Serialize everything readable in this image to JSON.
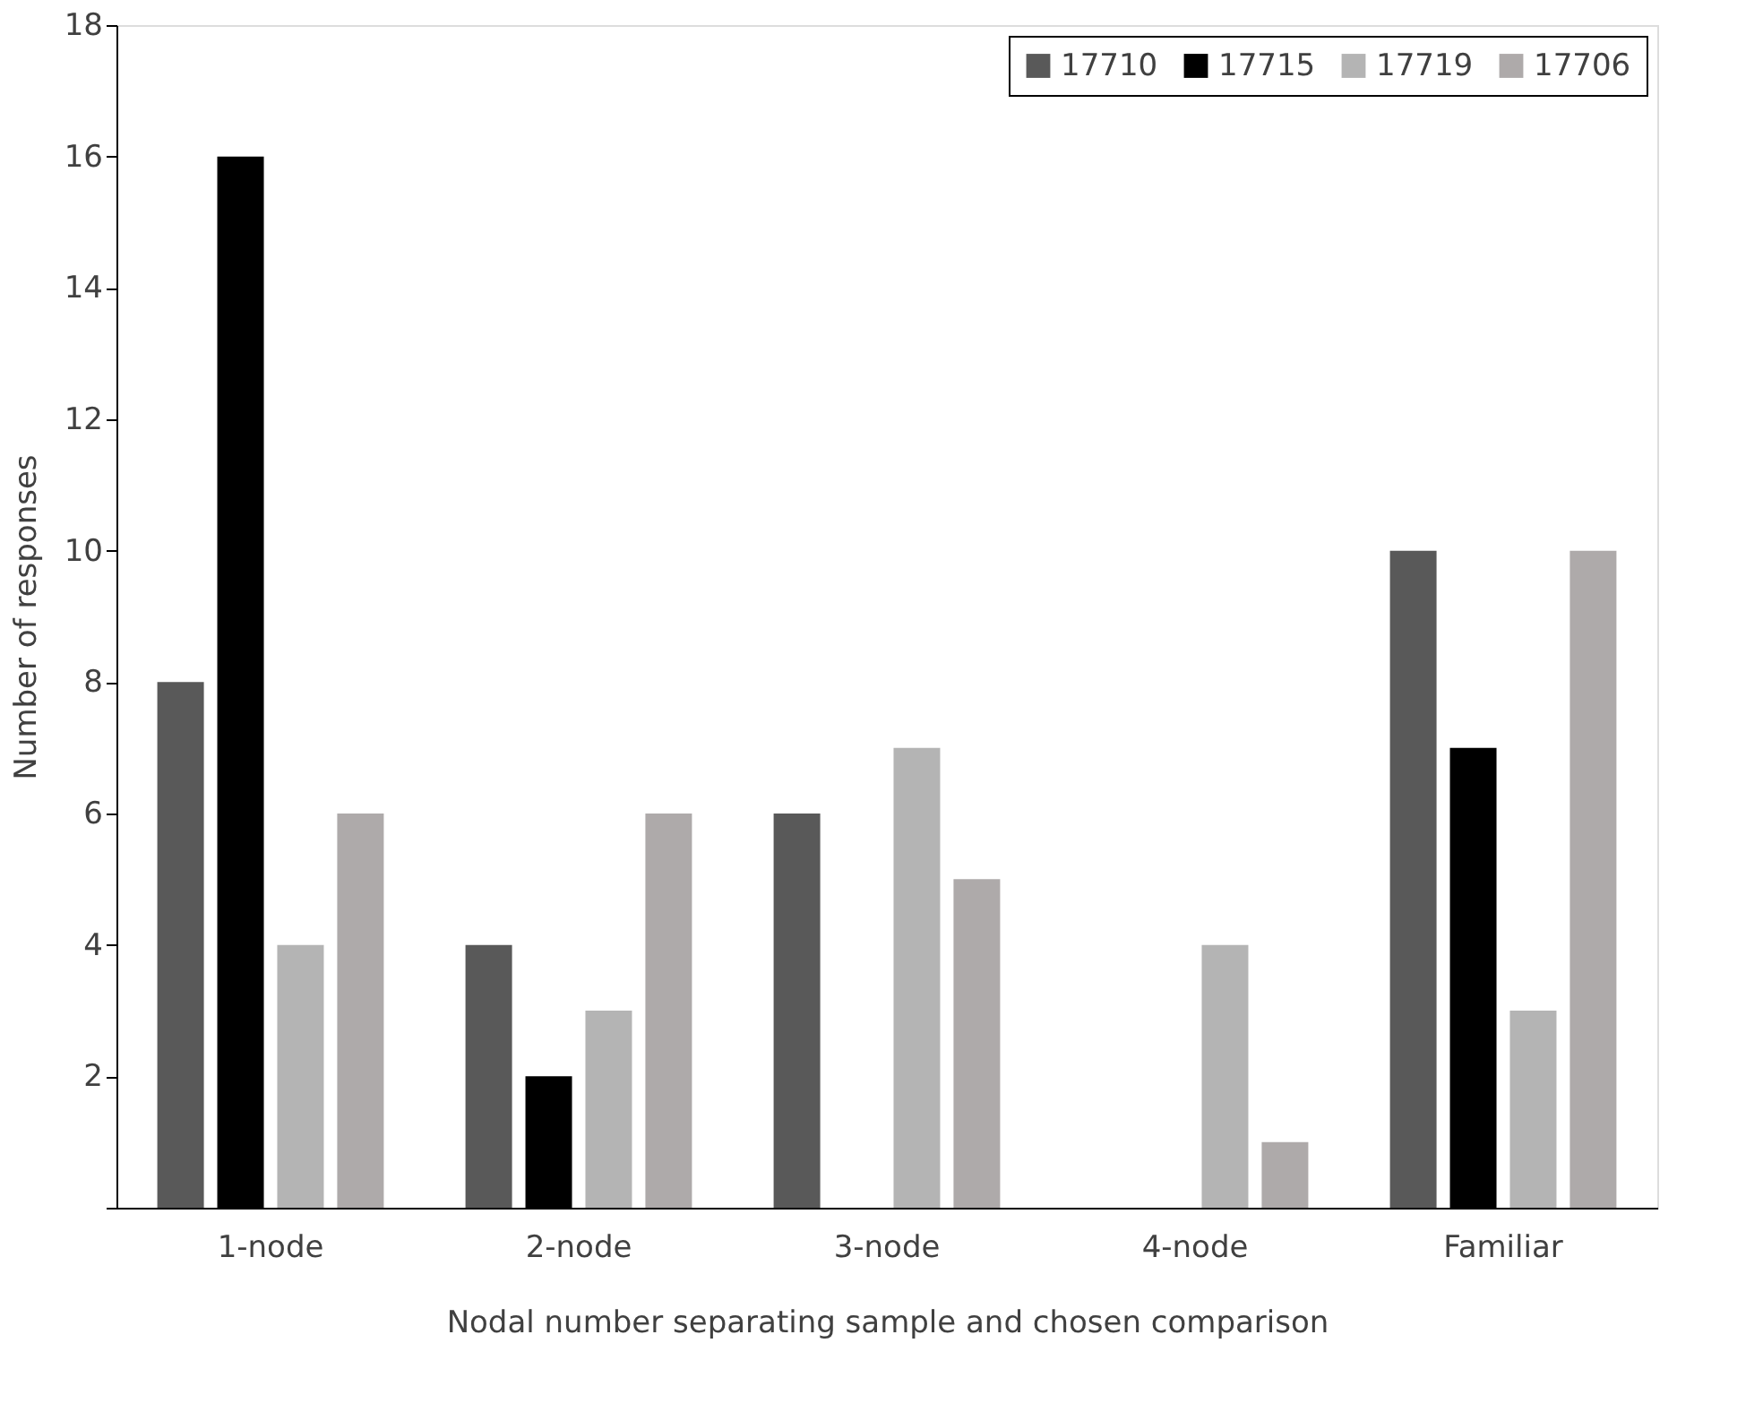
{
  "chart_data": {
    "type": "bar",
    "xlabel": "Nodal number separating sample and chosen comparison",
    "ylabel": "Number of responses",
    "categories": [
      "1-node",
      "2-node",
      "3-node",
      "4-node",
      "Familiar"
    ],
    "series": [
      {
        "name": "17710",
        "color": "#595959",
        "values": [
          8,
          4,
          6,
          0,
          10
        ]
      },
      {
        "name": "17715",
        "color": "#000000",
        "values": [
          16,
          2,
          0,
          0,
          7
        ]
      },
      {
        "name": "17719",
        "color": "#b4b4b4",
        "values": [
          4,
          3,
          7,
          4,
          3
        ]
      },
      {
        "name": "17706",
        "color": "#aeaaaa",
        "values": [
          6,
          6,
          5,
          1,
          10
        ]
      }
    ],
    "ylim": [
      0,
      18
    ],
    "yticks": [
      {
        "value": 0,
        "label": null
      },
      2,
      4,
      6,
      8,
      10,
      12,
      14,
      16,
      18
    ],
    "grid": false,
    "legend": "top right"
  }
}
